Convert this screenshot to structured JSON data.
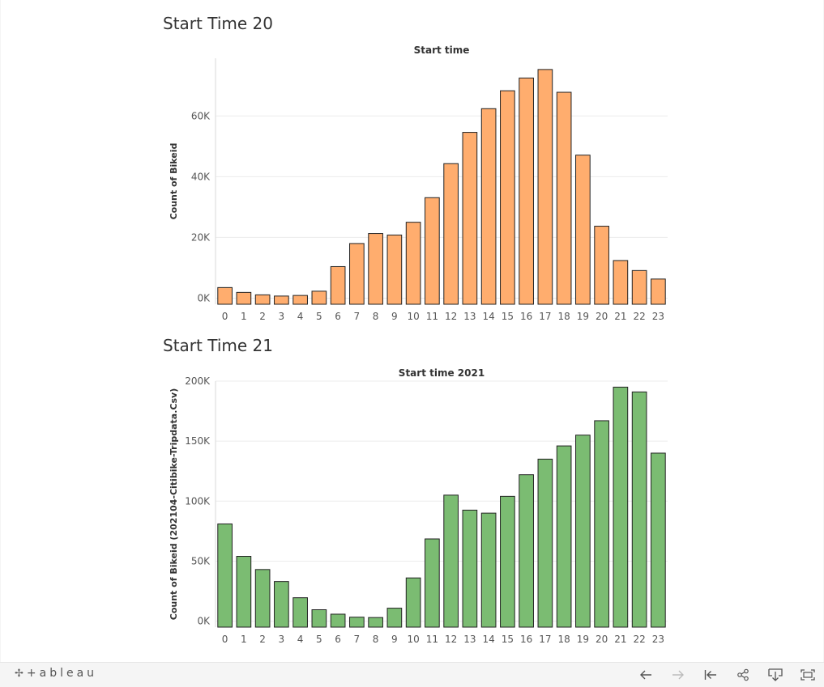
{
  "footer": {
    "logo_mark": "✢",
    "logo_text": "+ableau",
    "buttons": [
      "undo-icon",
      "redo-icon",
      "revert-icon",
      "share-icon",
      "download-icon",
      "fullscreen-icon"
    ]
  },
  "sheets": [
    {
      "title": "Start Time 20",
      "bar_color": "#ffad6e"
    },
    {
      "title": "Start Time 21",
      "bar_color": "#7bbc72"
    }
  ],
  "chart_data": [
    {
      "type": "bar",
      "title": "Start time",
      "xlabel": "",
      "ylabel": "Count of Bikeid",
      "categories": [
        "0",
        "1",
        "2",
        "3",
        "4",
        "5",
        "6",
        "7",
        "8",
        "9",
        "10",
        "11",
        "12",
        "13",
        "14",
        "15",
        "16",
        "17",
        "18",
        "19",
        "20",
        "21",
        "22",
        "23"
      ],
      "values": [
        3500,
        1900,
        1100,
        700,
        900,
        2300,
        10400,
        18000,
        21300,
        20800,
        25000,
        33100,
        44300,
        54600,
        62400,
        68300,
        72500,
        75300,
        67800,
        47100,
        23700,
        12400,
        9100,
        6300
      ],
      "ylim": [
        -2000,
        79000
      ],
      "yticks": [
        0,
        20000,
        40000,
        60000
      ],
      "ytick_labels": [
        "0K",
        "20K",
        "40K",
        "60K"
      ],
      "grid": true
    },
    {
      "type": "bar",
      "title": "Start time 2021",
      "xlabel": "",
      "ylabel": "Count of Bikeid (202104-Citibike-Tripdata.Csv)",
      "categories": [
        "0",
        "1",
        "2",
        "3",
        "4",
        "5",
        "6",
        "7",
        "8",
        "9",
        "10",
        "11",
        "12",
        "13",
        "14",
        "15",
        "16",
        "17",
        "18",
        "19",
        "20",
        "21",
        "22",
        "23"
      ],
      "values": [
        81000,
        54000,
        43000,
        33000,
        19500,
        9500,
        5800,
        3300,
        3000,
        10800,
        36000,
        68500,
        105000,
        92500,
        90000,
        104000,
        122000,
        135000,
        146000,
        155000,
        167000,
        195000,
        191000,
        140000
      ],
      "ylim": [
        -5000,
        200000
      ],
      "yticks": [
        0,
        50000,
        100000,
        150000,
        200000
      ],
      "ytick_labels": [
        "0K",
        "50K",
        "100K",
        "150K",
        "200K"
      ],
      "grid": true
    }
  ]
}
